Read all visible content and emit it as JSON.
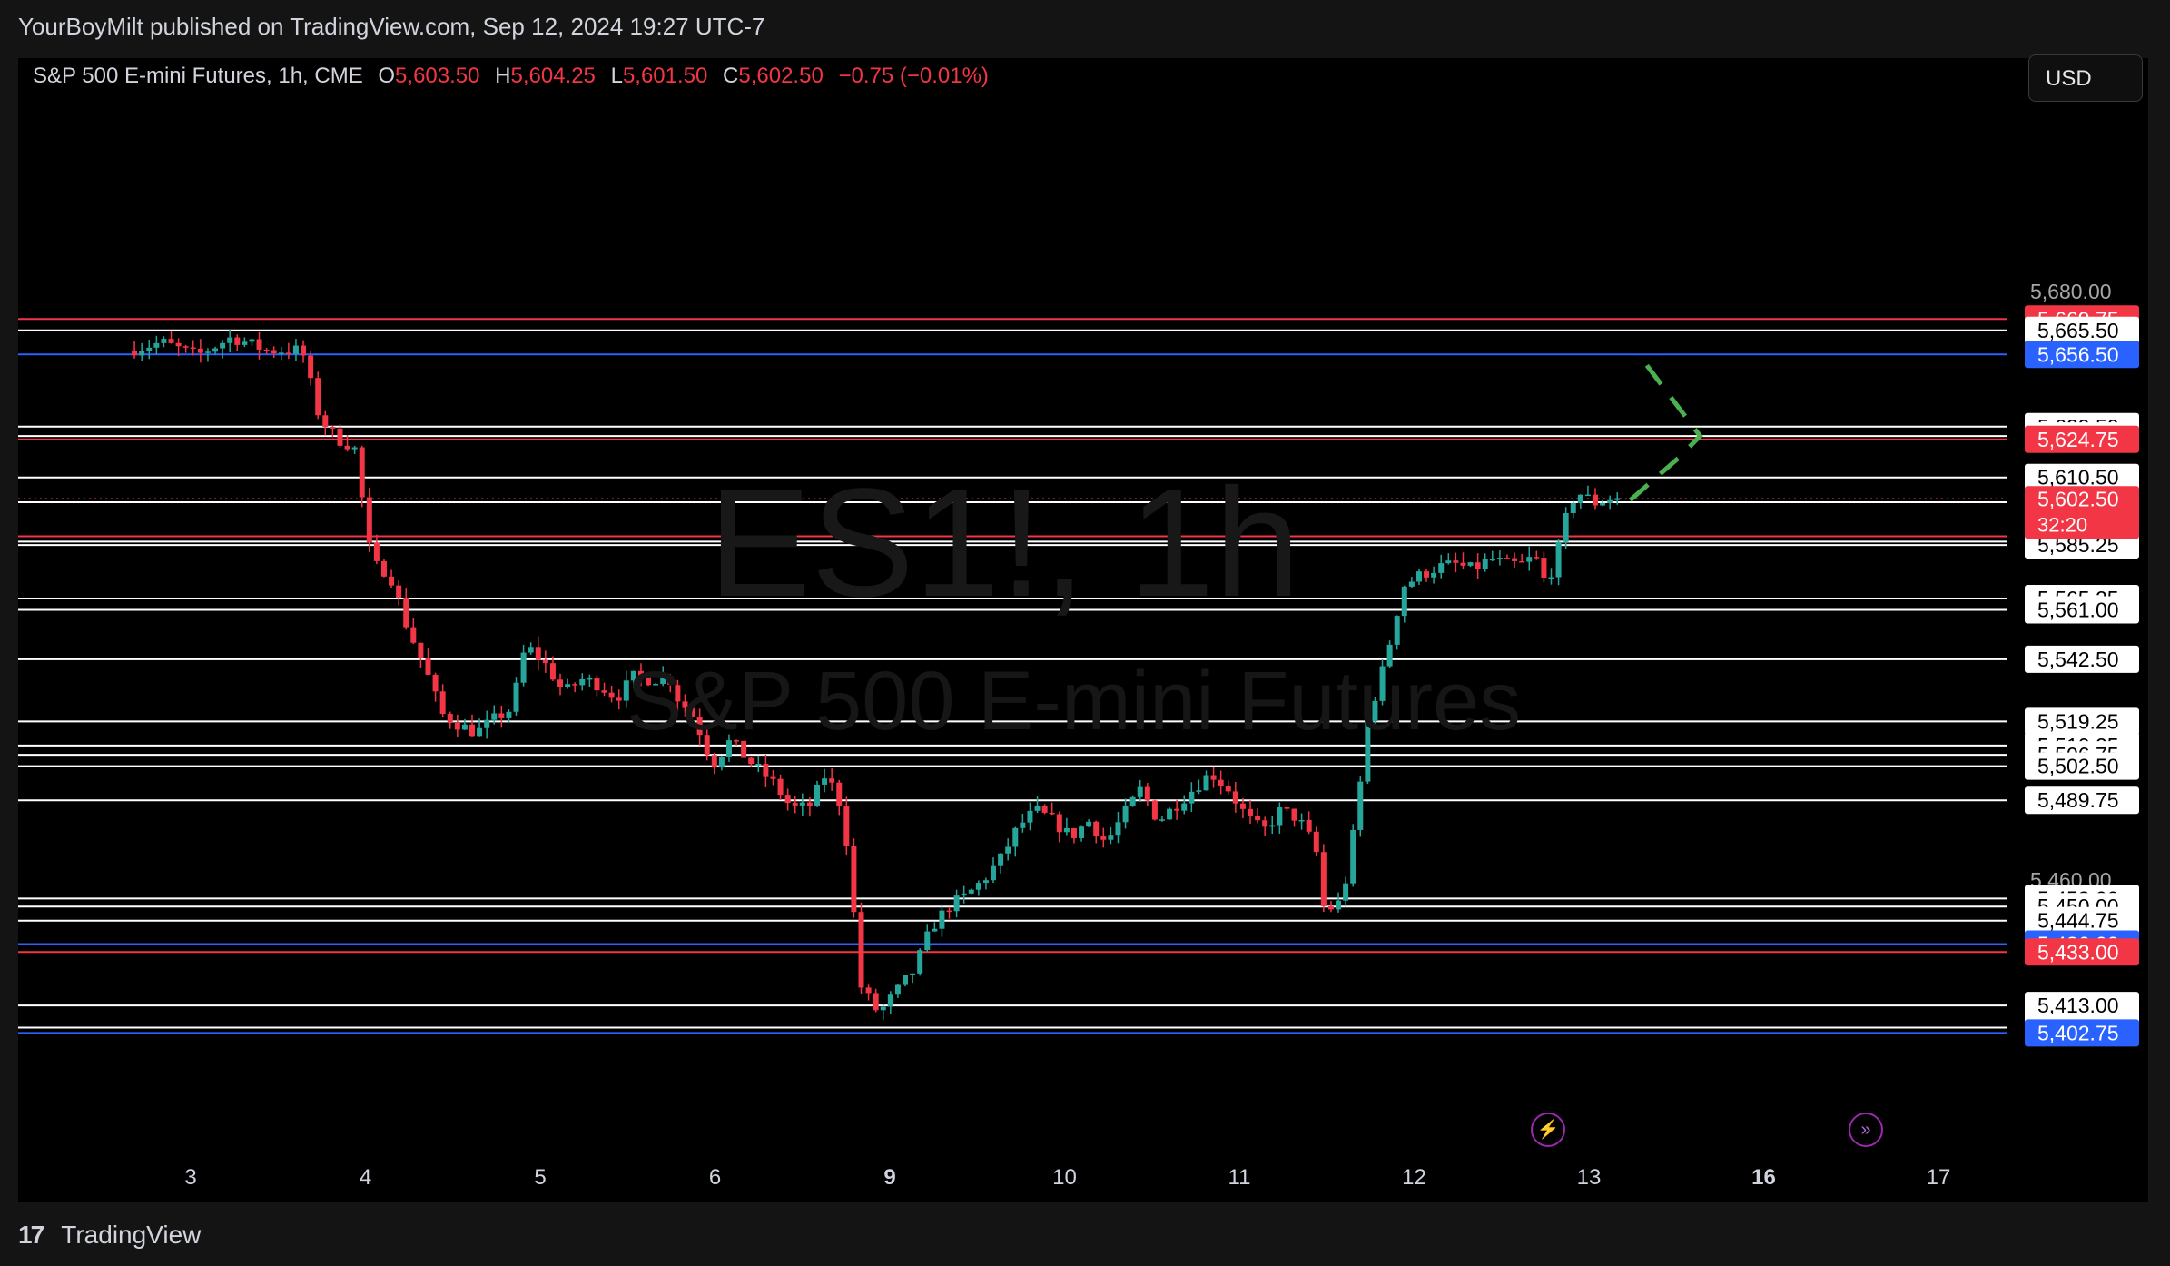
{
  "publisher_line": "YourBoyMilt published on TradingView.com, Sep 12, 2024 19:27 UTC-7",
  "legend": {
    "symbol": "S&P 500 E-mini Futures, 1h, CME",
    "open_label": "O",
    "open": "5,603.50",
    "high_label": "H",
    "high": "5,604.25",
    "low_label": "L",
    "low": "5,601.50",
    "close_label": "C",
    "close": "5,602.50",
    "change": "−0.75 (−0.01%)"
  },
  "currency_button": "USD",
  "watermark": {
    "symbol": "ES1!, 1h",
    "name": "S&P 500 E-mini Futures"
  },
  "footer": {
    "logo_text": "TradingView",
    "logo_mark": "17"
  },
  "icons": {
    "lightning": "lightning-icon",
    "forward": "fast-forward-icon"
  },
  "colors": {
    "up": "#26a69a",
    "down": "#f23645",
    "level_white": "#ffffff",
    "level_red": "#f23645",
    "level_blue": "#2962ff",
    "projection": "#4caf50",
    "background": "#000000"
  },
  "chart_data": {
    "type": "candlestick",
    "timeframe": "1h",
    "symbol": "ES1!",
    "currency": "USD",
    "ylim": [
      5385,
      5690
    ],
    "x_ticks": [
      {
        "label": "3",
        "bold": false
      },
      {
        "label": "4",
        "bold": false
      },
      {
        "label": "5",
        "bold": false
      },
      {
        "label": "6",
        "bold": false
      },
      {
        "label": "9",
        "bold": true
      },
      {
        "label": "10",
        "bold": false
      },
      {
        "label": "11",
        "bold": false
      },
      {
        "label": "12",
        "bold": false
      },
      {
        "label": "13",
        "bold": false
      },
      {
        "label": "16",
        "bold": true
      },
      {
        "label": "17",
        "bold": false
      }
    ],
    "y_ticks": [
      "5,680.00",
      "5,460.00"
    ],
    "current_price": {
      "value": 5602.5,
      "label": "5,602.50",
      "countdown": "32:20"
    },
    "levels": [
      {
        "value": 5669.75,
        "label": "5,669.75",
        "style": "red"
      },
      {
        "value": 5665.5,
        "label": "5,665.50",
        "style": "white"
      },
      {
        "value": 5656.5,
        "label": "5,656.50",
        "style": "blue"
      },
      {
        "value": 5629.5,
        "label": "5,629.50",
        "style": "white"
      },
      {
        "value": 5626.0,
        "label": "5,626.00",
        "style": "white"
      },
      {
        "value": 5624.75,
        "label": "5,624.75",
        "style": "red"
      },
      {
        "value": 5610.5,
        "label": "5,610.50",
        "style": "white"
      },
      {
        "value": 5601.25,
        "label": "5,601.25",
        "style": "white"
      },
      {
        "value": 5588.5,
        "label": "5,588.50",
        "style": "red"
      },
      {
        "value": 5586.5,
        "label": "5,586.50",
        "style": "white"
      },
      {
        "value": 5585.25,
        "label": "5,585.25",
        "style": "white"
      },
      {
        "value": 5565.25,
        "label": "5,565.25",
        "style": "white"
      },
      {
        "value": 5561.0,
        "label": "5,561.00",
        "style": "white"
      },
      {
        "value": 5542.5,
        "label": "5,542.50",
        "style": "white"
      },
      {
        "value": 5519.25,
        "label": "5,519.25",
        "style": "white"
      },
      {
        "value": 5510.25,
        "label": "5,510.25",
        "style": "white"
      },
      {
        "value": 5506.75,
        "label": "5,506.75",
        "style": "white"
      },
      {
        "value": 5502.5,
        "label": "5,502.50",
        "style": "white"
      },
      {
        "value": 5489.75,
        "label": "5,489.75",
        "style": "white"
      },
      {
        "value": 5453.0,
        "label": "5,453.00",
        "style": "white"
      },
      {
        "value": 5450.0,
        "label": "5,450.00",
        "style": "white"
      },
      {
        "value": 5444.75,
        "label": "5,444.75",
        "style": "white"
      },
      {
        "value": 5436.0,
        "label": "5,436.00",
        "style": "blue"
      },
      {
        "value": 5433.0,
        "label": "5,433.00",
        "style": "red"
      },
      {
        "value": 5413.0,
        "label": "5,413.00",
        "style": "white"
      },
      {
        "value": 5404.75,
        "label": "5,404.75",
        "style": "white"
      },
      {
        "value": 5402.75,
        "label": "5,402.75",
        "style": "blue"
      }
    ],
    "price_path": [
      {
        "x": 0.0,
        "y": 5658
      },
      {
        "x": 0.2,
        "y": 5661
      },
      {
        "x": 0.4,
        "y": 5656
      },
      {
        "x": 0.6,
        "y": 5663
      },
      {
        "x": 0.8,
        "y": 5658
      },
      {
        "x": 1.0,
        "y": 5658
      },
      {
        "x": 1.1,
        "y": 5633
      },
      {
        "x": 1.2,
        "y": 5625
      },
      {
        "x": 1.3,
        "y": 5622
      },
      {
        "x": 1.4,
        "y": 5578
      },
      {
        "x": 1.5,
        "y": 5575
      },
      {
        "x": 1.6,
        "y": 5555
      },
      {
        "x": 1.7,
        "y": 5540
      },
      {
        "x": 1.8,
        "y": 5522
      },
      {
        "x": 1.9,
        "y": 5518
      },
      {
        "x": 2.0,
        "y": 5515
      },
      {
        "x": 2.1,
        "y": 5520
      },
      {
        "x": 2.2,
        "y": 5524
      },
      {
        "x": 2.28,
        "y": 5548
      },
      {
        "x": 2.4,
        "y": 5540
      },
      {
        "x": 2.5,
        "y": 5530
      },
      {
        "x": 2.6,
        "y": 5535
      },
      {
        "x": 2.7,
        "y": 5533
      },
      {
        "x": 2.8,
        "y": 5528
      },
      {
        "x": 2.9,
        "y": 5536
      },
      {
        "x": 3.0,
        "y": 5535
      },
      {
        "x": 3.1,
        "y": 5536
      },
      {
        "x": 3.15,
        "y": 5528
      },
      {
        "x": 3.25,
        "y": 5520
      },
      {
        "x": 3.35,
        "y": 5503
      },
      {
        "x": 3.45,
        "y": 5512
      },
      {
        "x": 3.55,
        "y": 5505
      },
      {
        "x": 3.7,
        "y": 5496
      },
      {
        "x": 3.8,
        "y": 5487
      },
      {
        "x": 3.9,
        "y": 5487
      },
      {
        "x": 4.0,
        "y": 5500
      },
      {
        "x": 4.1,
        "y": 5485
      },
      {
        "x": 4.2,
        "y": 5420
      },
      {
        "x": 4.3,
        "y": 5410
      },
      {
        "x": 4.4,
        "y": 5418
      },
      {
        "x": 4.5,
        "y": 5426
      },
      {
        "x": 4.6,
        "y": 5442
      },
      {
        "x": 4.7,
        "y": 5450
      },
      {
        "x": 4.8,
        "y": 5454
      },
      {
        "x": 4.9,
        "y": 5460
      },
      {
        "x": 5.0,
        "y": 5468
      },
      {
        "x": 5.1,
        "y": 5480
      },
      {
        "x": 5.2,
        "y": 5486
      },
      {
        "x": 5.3,
        "y": 5482
      },
      {
        "x": 5.4,
        "y": 5476
      },
      {
        "x": 5.5,
        "y": 5482
      },
      {
        "x": 5.6,
        "y": 5474
      },
      {
        "x": 5.7,
        "y": 5484
      },
      {
        "x": 5.8,
        "y": 5494
      },
      {
        "x": 5.9,
        "y": 5482
      },
      {
        "x": 6.0,
        "y": 5488
      },
      {
        "x": 6.1,
        "y": 5494
      },
      {
        "x": 6.2,
        "y": 5500
      },
      {
        "x": 6.3,
        "y": 5494
      },
      {
        "x": 6.4,
        "y": 5484
      },
      {
        "x": 6.5,
        "y": 5478
      },
      {
        "x": 6.6,
        "y": 5486
      },
      {
        "x": 6.7,
        "y": 5483
      },
      {
        "x": 6.8,
        "y": 5472
      },
      {
        "x": 6.85,
        "y": 5448
      },
      {
        "x": 6.95,
        "y": 5452
      },
      {
        "x": 7.0,
        "y": 5470
      },
      {
        "x": 7.05,
        "y": 5493
      },
      {
        "x": 7.1,
        "y": 5520
      },
      {
        "x": 7.2,
        "y": 5542
      },
      {
        "x": 7.3,
        "y": 5570
      },
      {
        "x": 7.4,
        "y": 5574
      },
      {
        "x": 7.5,
        "y": 5577
      },
      {
        "x": 7.6,
        "y": 5578
      },
      {
        "x": 7.7,
        "y": 5576
      },
      {
        "x": 7.8,
        "y": 5580
      },
      {
        "x": 7.9,
        "y": 5578
      },
      {
        "x": 8.0,
        "y": 5578
      },
      {
        "x": 8.05,
        "y": 5582
      },
      {
        "x": 8.12,
        "y": 5570
      },
      {
        "x": 8.2,
        "y": 5586
      },
      {
        "x": 8.25,
        "y": 5600
      },
      {
        "x": 8.3,
        "y": 5605
      },
      {
        "x": 8.4,
        "y": 5601
      },
      {
        "x": 8.5,
        "y": 5603
      },
      {
        "x": 8.55,
        "y": 5602.5
      }
    ],
    "projection": [
      {
        "x": 8.6,
        "y": 5602
      },
      {
        "x": 8.88,
        "y": 5618
      },
      {
        "x": 9.0,
        "y": 5626
      },
      {
        "x": 8.7,
        "y": 5652
      },
      {
        "x": 8.65,
        "y": 5657
      }
    ]
  }
}
